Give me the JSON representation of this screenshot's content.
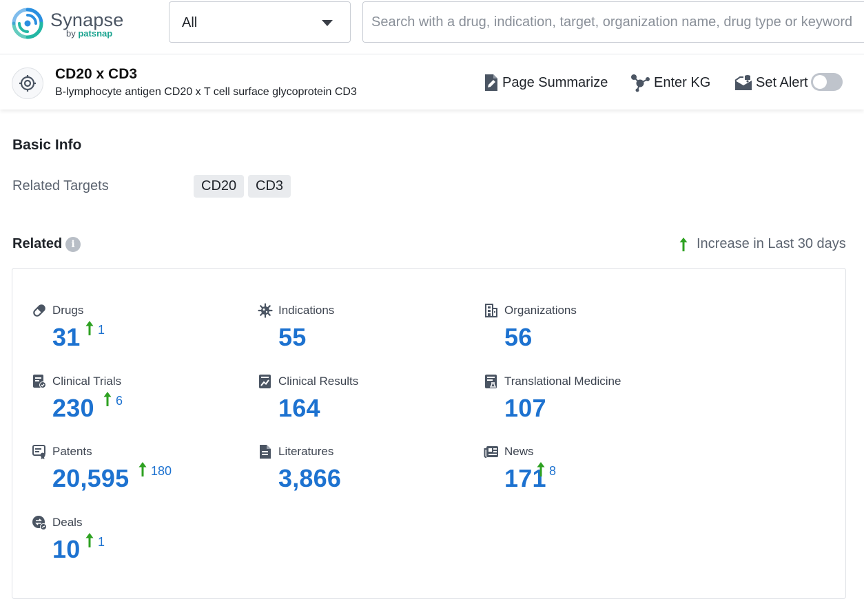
{
  "header": {
    "logo_text": "Synapse",
    "logo_sub_prefix": "by",
    "logo_sub_brand": "patsnap",
    "scope_value": "All",
    "search_placeholder": "Search with a drug, indication, target, organization name, drug type or keyword"
  },
  "entity": {
    "title": "CD20 x CD3",
    "subtitle": "B-lymphocyte antigen CD20 x T cell surface glycoprotein CD3",
    "actions": {
      "page_summarize": "Page Summarize",
      "enter_kg": "Enter KG",
      "set_alert": "Set Alert"
    },
    "alert_enabled": false
  },
  "basic_info": {
    "title": "Basic Info",
    "related_targets_label": "Related Targets",
    "targets": [
      "CD20",
      "CD3"
    ]
  },
  "related": {
    "title": "Related",
    "legend": "Increase in Last 30 days",
    "stats": [
      {
        "label": "Drugs",
        "value": "31",
        "increase": "1",
        "icon": "pill-icon"
      },
      {
        "label": "Indications",
        "value": "55",
        "increase": "",
        "icon": "virus-icon"
      },
      {
        "label": "Organizations",
        "value": "56",
        "increase": "",
        "icon": "building-icon"
      },
      {
        "label": "Clinical Trials",
        "value": "230",
        "increase": "6",
        "icon": "clipboard-icon"
      },
      {
        "label": "Clinical Results",
        "value": "164",
        "increase": "",
        "icon": "chart-report-icon"
      },
      {
        "label": "Translational Medicine",
        "value": "107",
        "increase": "",
        "icon": "document-flask-icon"
      },
      {
        "label": "Patents",
        "value": "20,595",
        "increase": "180",
        "icon": "patent-icon"
      },
      {
        "label": "Literatures",
        "value": "3,866",
        "increase": "",
        "icon": "file-text-icon"
      },
      {
        "label": "News",
        "value": "171",
        "increase": "8",
        "icon": "newspaper-icon"
      },
      {
        "label": "Deals",
        "value": "10",
        "increase": "1",
        "icon": "deal-icon"
      }
    ]
  },
  "colors": {
    "accent_blue": "#1d72d0",
    "increase_green": "#2ea121",
    "icon_gray": "#4b5563"
  }
}
